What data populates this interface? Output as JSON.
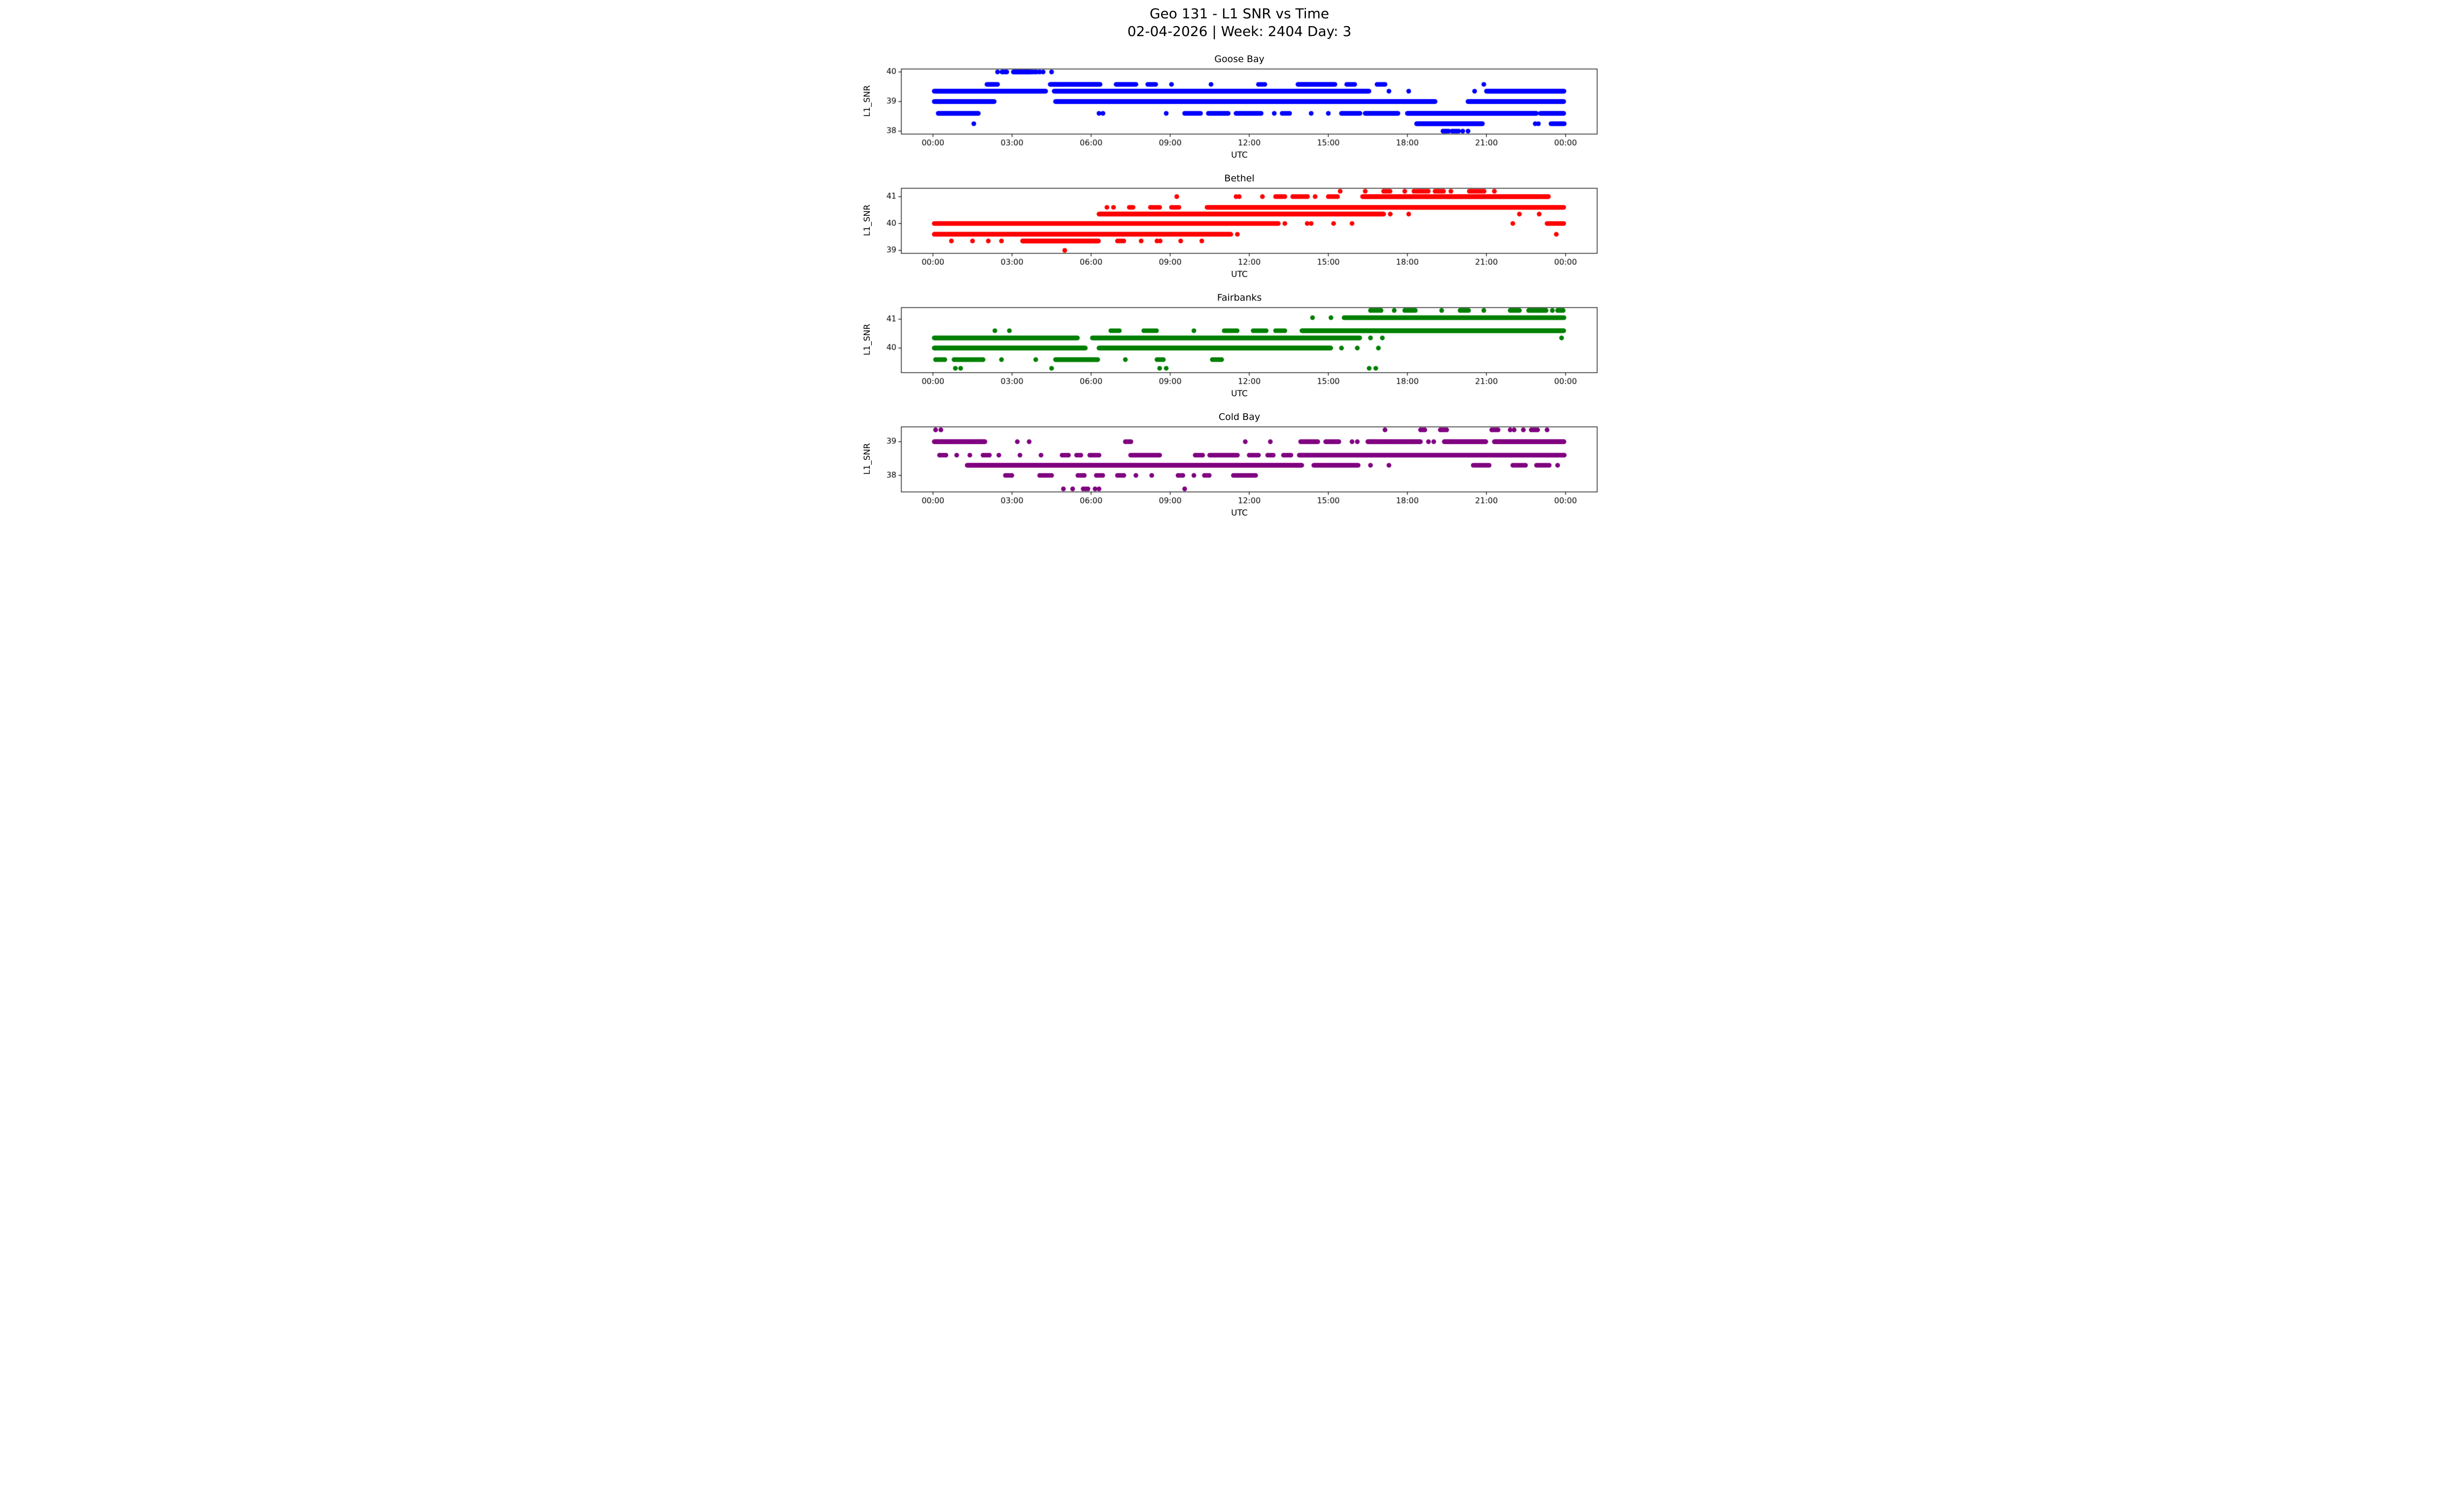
{
  "figure": {
    "title": "Geo 131 - L1 SNR vs Time",
    "subtitle": "02-04-2026 | Week: 2404 Day: 3"
  },
  "chart_data": [
    {
      "type": "scatter",
      "title": "Goose Bay",
      "color": "#0000ff",
      "ylabel": "L1_SNR",
      "xlabel": "UTC",
      "xlim": [
        -1.2,
        25.2
      ],
      "ylim": [
        37.9,
        40.1
      ],
      "yticks": [
        38,
        39,
        40
      ],
      "xticks": [
        0,
        3,
        6,
        9,
        12,
        15,
        18,
        21,
        24
      ],
      "xtick_labels": [
        "00:00",
        "03:00",
        "06:00",
        "09:00",
        "12:00",
        "15:00",
        "18:00",
        "21:00",
        "00:00"
      ],
      "levels": [
        {
          "y": 40.0,
          "segments": [
            [
              2.62,
              2.82,
              0.06
            ],
            [
              3.05,
              3.68,
              0.035
            ],
            [
              3.72,
              3.95,
              0.07
            ]
          ],
          "points": [
            2.45,
            4.05,
            4.18,
            4.5
          ]
        },
        {
          "y": 39.58,
          "segments": [
            [
              2.05,
              2.45,
              0.05
            ],
            [
              4.45,
              6.35,
              0.035
            ],
            [
              6.95,
              7.7,
              0.05
            ],
            [
              8.15,
              8.5,
              0.06
            ],
            [
              12.35,
              12.6,
              0.08
            ],
            [
              13.85,
              15.25,
              0.04
            ],
            [
              15.7,
              16.05,
              0.06
            ],
            [
              16.85,
              17.2,
              0.06
            ]
          ],
          "points": [
            9.05,
            10.55,
            20.9
          ]
        },
        {
          "y": 39.35,
          "segments": [
            [
              0.05,
              4.3,
              0.032
            ],
            [
              4.6,
              16.55,
              0.03
            ],
            [
              21.0,
              23.95,
              0.03
            ]
          ],
          "points": [
            17.3,
            18.05,
            20.55
          ]
        },
        {
          "y": 39.0,
          "segments": [
            [
              0.05,
              2.35,
              0.032
            ],
            [
              4.65,
              19.05,
              0.03
            ],
            [
              20.3,
              23.95,
              0.03
            ]
          ],
          "points": []
        },
        {
          "y": 38.6,
          "segments": [
            [
              0.2,
              1.75,
              0.04
            ],
            [
              9.55,
              10.15,
              0.06
            ],
            [
              10.45,
              11.2,
              0.05
            ],
            [
              11.5,
              12.45,
              0.05
            ],
            [
              13.25,
              13.55,
              0.07
            ],
            [
              15.5,
              16.2,
              0.05
            ],
            [
              16.4,
              17.65,
              0.04
            ],
            [
              18.0,
              22.9,
              0.03
            ],
            [
              23.05,
              23.95,
              0.04
            ]
          ],
          "points": [
            6.3,
            6.45,
            8.85,
            12.95,
            14.35,
            15.0
          ]
        },
        {
          "y": 38.25,
          "segments": [
            [
              18.35,
              20.85,
              0.032
            ],
            [
              23.45,
              23.95,
              0.05
            ]
          ],
          "points": [
            1.55,
            22.85,
            22.97
          ]
        },
        {
          "y": 38.0,
          "segments": [
            [
              19.35,
              19.6,
              0.07
            ],
            [
              19.7,
              19.95,
              0.08
            ]
          ],
          "points": [
            20.1,
            20.3
          ]
        }
      ]
    },
    {
      "type": "scatter",
      "title": "Bethel",
      "color": "#ff0000",
      "ylabel": "L1_SNR",
      "xlabel": "UTC",
      "xlim": [
        -1.2,
        25.2
      ],
      "ylim": [
        38.89,
        41.31
      ],
      "yticks": [
        39,
        40,
        41
      ],
      "xticks": [
        0,
        3,
        6,
        9,
        12,
        15,
        18,
        21,
        24
      ],
      "xtick_labels": [
        "00:00",
        "03:00",
        "06:00",
        "09:00",
        "12:00",
        "15:00",
        "18:00",
        "21:00",
        "00:00"
      ],
      "levels": [
        {
          "y": 41.2,
          "segments": [
            [
              17.1,
              17.35,
              0.08
            ],
            [
              18.25,
              18.85,
              0.09
            ],
            [
              19.05,
              19.4,
              0.08
            ],
            [
              20.35,
              20.95,
              0.08
            ]
          ],
          "points": [
            15.45,
            16.4,
            17.9,
            19.65,
            21.3
          ]
        },
        {
          "y": 41.0,
          "segments": [
            [
              13.0,
              13.35,
              0.07
            ],
            [
              13.65,
              14.25,
              0.07
            ],
            [
              15.0,
              15.35,
              0.07
            ],
            [
              16.3,
              23.35,
              0.03
            ]
          ],
          "points": [
            9.25,
            11.5,
            11.62,
            12.5,
            14.5
          ]
        },
        {
          "y": 40.6,
          "segments": [
            [
              7.45,
              7.65,
              0.07
            ],
            [
              8.25,
              8.6,
              0.07
            ],
            [
              9.05,
              9.35,
              0.07
            ],
            [
              10.4,
              23.95,
              0.03
            ]
          ],
          "points": [
            6.6,
            6.85
          ]
        },
        {
          "y": 40.35,
          "segments": [
            [
              6.3,
              17.1,
              0.03
            ]
          ],
          "points": [
            17.35,
            18.05,
            22.25,
            23.0
          ]
        },
        {
          "y": 40.0,
          "segments": [
            [
              0.05,
              13.1,
              0.03
            ],
            [
              23.3,
              23.95,
              0.045
            ]
          ],
          "points": [
            13.35,
            14.2,
            14.35,
            15.2,
            15.9,
            22.0
          ]
        },
        {
          "y": 39.6,
          "segments": [
            [
              0.05,
              11.3,
              0.03
            ]
          ],
          "points": [
            11.55,
            23.65
          ]
        },
        {
          "y": 39.35,
          "segments": [
            [
              3.4,
              6.3,
              0.03
            ],
            [
              7.0,
              7.25,
              0.08
            ]
          ],
          "points": [
            0.7,
            1.5,
            2.1,
            2.6,
            7.9,
            8.5,
            8.62,
            9.4,
            10.2
          ]
        },
        {
          "y": 39.0,
          "segments": [],
          "points": [
            5.0
          ]
        }
      ]
    },
    {
      "type": "scatter",
      "title": "Fairbanks",
      "color": "#008000",
      "ylabel": "L1_SNR",
      "xlabel": "UTC",
      "xlim": [
        -1.2,
        25.2
      ],
      "ylim": [
        39.15,
        41.4
      ],
      "yticks": [
        40,
        41
      ],
      "xticks": [
        0,
        3,
        6,
        9,
        12,
        15,
        18,
        21,
        24
      ],
      "xtick_labels": [
        "00:00",
        "03:00",
        "06:00",
        "09:00",
        "12:00",
        "15:00",
        "18:00",
        "21:00",
        "00:00"
      ],
      "levels": [
        {
          "y": 41.3,
          "segments": [
            [
              16.6,
              17.0,
              0.08
            ],
            [
              17.9,
              18.35,
              0.08
            ],
            [
              20.0,
              20.35,
              0.08
            ],
            [
              21.9,
              22.3,
              0.07
            ],
            [
              22.6,
              23.3,
              0.06
            ],
            [
              23.7,
              23.95,
              0.07
            ]
          ],
          "points": [
            17.5,
            19.3,
            20.9,
            23.5
          ]
        },
        {
          "y": 41.05,
          "segments": [
            [
              15.6,
              23.95,
              0.03
            ]
          ],
          "points": [
            14.4,
            15.1
          ]
        },
        {
          "y": 40.6,
          "segments": [
            [
              6.75,
              7.1,
              0.08
            ],
            [
              8.0,
              8.55,
              0.08
            ],
            [
              11.05,
              11.55,
              0.07
            ],
            [
              12.15,
              12.65,
              0.07
            ],
            [
              13.0,
              13.35,
              0.07
            ],
            [
              14.0,
              23.95,
              0.03
            ]
          ],
          "points": [
            2.35,
            2.9,
            9.9
          ]
        },
        {
          "y": 40.35,
          "segments": [
            [
              0.05,
              5.5,
              0.03
            ],
            [
              6.05,
              16.2,
              0.03
            ]
          ],
          "points": [
            16.6,
            17.05,
            23.85
          ]
        },
        {
          "y": 40.0,
          "segments": [
            [
              0.05,
              5.8,
              0.03
            ],
            [
              6.3,
              15.1,
              0.03
            ]
          ],
          "points": [
            15.5,
            16.1,
            16.9
          ]
        },
        {
          "y": 39.6,
          "segments": [
            [
              0.1,
              0.5,
              0.07
            ],
            [
              0.8,
              1.9,
              0.05
            ],
            [
              4.65,
              6.25,
              0.032
            ],
            [
              8.5,
              8.75,
              0.08
            ],
            [
              10.6,
              11.0,
              0.07
            ]
          ],
          "points": [
            2.6,
            3.9,
            7.3
          ]
        },
        {
          "y": 39.3,
          "segments": [],
          "points": [
            0.85,
            1.05,
            4.5,
            8.6,
            8.85,
            16.55,
            16.8
          ]
        }
      ]
    },
    {
      "type": "scatter",
      "title": "Cold Bay",
      "color": "#800080",
      "ylabel": "L1_SNR",
      "xlabel": "UTC",
      "xlim": [
        -1.2,
        25.2
      ],
      "ylim": [
        37.51,
        39.44
      ],
      "yticks": [
        38,
        39
      ],
      "xticks": [
        0,
        3,
        6,
        9,
        12,
        15,
        18,
        21,
        24
      ],
      "xtick_labels": [
        "00:00",
        "03:00",
        "06:00",
        "09:00",
        "12:00",
        "15:00",
        "18:00",
        "21:00",
        "00:00"
      ],
      "levels": [
        {
          "y": 39.35,
          "segments": [
            [
              18.5,
              18.7,
              0.08
            ],
            [
              19.25,
              19.55,
              0.08
            ],
            [
              21.2,
              21.5,
              0.08
            ],
            [
              22.7,
              23.0,
              0.08
            ]
          ],
          "points": [
            0.1,
            0.3,
            17.15,
            21.9,
            22.05,
            22.4,
            23.3
          ]
        },
        {
          "y": 39.0,
          "segments": [
            [
              0.05,
              2.0,
              0.032
            ],
            [
              7.3,
              7.55,
              0.07
            ],
            [
              13.95,
              14.6,
              0.05
            ],
            [
              14.9,
              15.4,
              0.05
            ],
            [
              16.5,
              18.5,
              0.035
            ],
            [
              19.4,
              21.0,
              0.035
            ],
            [
              21.3,
              23.95,
              0.03
            ]
          ],
          "points": [
            3.2,
            3.65,
            11.85,
            12.8,
            15.9,
            16.1,
            18.8,
            19.0
          ]
        },
        {
          "y": 38.6,
          "segments": [
            [
              0.25,
              0.5,
              0.08
            ],
            [
              1.9,
              2.15,
              0.08
            ],
            [
              4.9,
              5.15,
              0.08
            ],
            [
              5.45,
              5.65,
              0.08
            ],
            [
              5.95,
              6.35,
              0.07
            ],
            [
              7.5,
              8.6,
              0.05
            ],
            [
              9.95,
              10.25,
              0.07
            ],
            [
              10.5,
              11.55,
              0.05
            ],
            [
              12.0,
              12.4,
              0.07
            ],
            [
              12.7,
              12.95,
              0.07
            ],
            [
              13.3,
              13.6,
              0.07
            ],
            [
              13.9,
              23.95,
              0.03
            ]
          ],
          "points": [
            0.9,
            1.4,
            2.5,
            3.3,
            4.1
          ]
        },
        {
          "y": 38.3,
          "segments": [
            [
              1.3,
              14.0,
              0.03
            ],
            [
              14.45,
              16.15,
              0.04
            ],
            [
              20.5,
              21.1,
              0.06
            ],
            [
              22.0,
              22.5,
              0.06
            ],
            [
              22.9,
              23.4,
              0.06
            ]
          ],
          "points": [
            16.6,
            17.3,
            23.7
          ]
        },
        {
          "y": 38.0,
          "segments": [
            [
              2.75,
              3.0,
              0.08
            ],
            [
              4.05,
              4.5,
              0.09
            ],
            [
              5.5,
              5.75,
              0.08
            ],
            [
              6.2,
              6.5,
              0.08
            ],
            [
              7.0,
              7.25,
              0.08
            ],
            [
              9.3,
              9.5,
              0.09
            ],
            [
              10.3,
              10.5,
              0.09
            ],
            [
              11.4,
              12.3,
              0.07
            ]
          ],
          "points": [
            7.7,
            8.3,
            9.9
          ]
        },
        {
          "y": 37.6,
          "segments": [
            [
              5.7,
              5.9,
              0.09
            ]
          ],
          "points": [
            4.95,
            5.3,
            6.15,
            6.3,
            9.55
          ]
        }
      ]
    }
  ]
}
